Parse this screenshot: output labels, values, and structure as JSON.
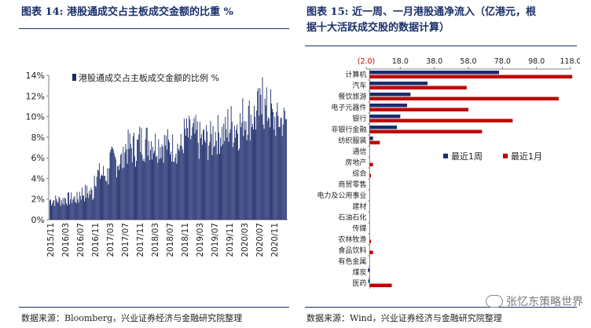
{
  "left": {
    "title": "图表 14:  港股通成交占主板成交金额的比重  %",
    "source": "数据来源：Bloomberg，兴业证券经济与金融研究院整理"
  },
  "right": {
    "title_line1": "图表 15:  近一周、一月港股通净流入（亿港元，根",
    "title_line2": "据十大活跃成交股的数据计算）",
    "source": "数据来源：Wind，兴业证券经济与金融研究院整理"
  },
  "watermark": "张忆东策略世界",
  "colors": {
    "navy": "#1b2a6b",
    "red": "#c00000",
    "title": "#1a2f6b"
  },
  "chart_data": [
    {
      "type": "bar",
      "legend": "港股通成交占主板成交金额的比例 %",
      "legend_position": "top-left",
      "x_ticks": [
        "2015/11",
        "2016/03",
        "2016/07",
        "2016/11",
        "2017/03",
        "2017/07",
        "2017/11",
        "2018/03",
        "2018/07",
        "2018/11",
        "2019/03",
        "2019/07",
        "2019/11",
        "2020/03",
        "2020/07",
        "2020/11"
      ],
      "y_ticks": [
        "0%",
        "2%",
        "4%",
        "6%",
        "8%",
        "10%",
        "12%",
        "14%"
      ],
      "ylim": [
        0,
        14
      ],
      "grid": false,
      "segments": [
        {
          "from": "2015/11",
          "to": "2016/03",
          "low": 1.2,
          "high": 2.5
        },
        {
          "from": "2016/03",
          "to": "2016/07",
          "low": 1.3,
          "high": 2.7
        },
        {
          "from": "2016/07",
          "to": "2016/11",
          "low": 1.6,
          "high": 3.5
        },
        {
          "from": "2016/11",
          "to": "2017/03",
          "low": 3.0,
          "high": 5.6
        },
        {
          "from": "2017/03",
          "to": "2017/07",
          "low": 4.0,
          "high": 7.2
        },
        {
          "from": "2017/07",
          "to": "2017/11",
          "low": 5.0,
          "high": 8.8
        },
        {
          "from": "2017/11",
          "to": "2018/03",
          "low": 5.5,
          "high": 9.5
        },
        {
          "from": "2018/03",
          "to": "2018/07",
          "low": 5.5,
          "high": 9.0
        },
        {
          "from": "2018/07",
          "to": "2018/11",
          "low": 5.3,
          "high": 8.6
        },
        {
          "from": "2018/11",
          "to": "2019/03",
          "low": 5.8,
          "high": 10.2
        },
        {
          "from": "2019/03",
          "to": "2019/07",
          "low": 5.5,
          "high": 9.6
        },
        {
          "from": "2019/07",
          "to": "2019/11",
          "low": 6.2,
          "high": 10.3
        },
        {
          "from": "2019/11",
          "to": "2020/03",
          "low": 6.5,
          "high": 11.5
        },
        {
          "from": "2020/03",
          "to": "2020/07",
          "low": 7.5,
          "high": 12.2
        },
        {
          "from": "2020/07",
          "to": "2020/11",
          "low": 8.0,
          "high": 13.0
        },
        {
          "from": "2020/11",
          "to": "2021/01",
          "low": 7.5,
          "high": 11.5
        }
      ],
      "peak": 13.8
    },
    {
      "type": "bar",
      "orientation": "horizontal",
      "x_ticks": [
        "(2.0)",
        "18.0",
        "38.0",
        "58.0",
        "78.0",
        "98.0",
        "118.0"
      ],
      "xlim": [
        -2,
        118
      ],
      "legend_position": "center-right",
      "categories": [
        "计算机",
        "汽车",
        "餐饮旅游",
        "电子元器件",
        "银行",
        "非银行金融",
        "纺织服装",
        "通信",
        "房地产",
        "综合",
        "商贸零售",
        "电力及公用事业",
        "建材",
        "石油石化",
        "传媒",
        "农林牧渔",
        "食品饮料",
        "有色金属",
        "煤炭",
        "医药"
      ],
      "series": [
        {
          "name": "最近1周",
          "color": "#1b2a6b",
          "values": [
            76,
            34,
            24,
            22,
            18,
            16,
            2,
            0,
            0,
            0,
            0,
            0,
            0,
            0,
            0,
            0,
            0,
            0,
            -1.0,
            -0.8
          ]
        },
        {
          "name": "最近1月",
          "color": "#c00000",
          "values": [
            119,
            57,
            111,
            58,
            84,
            66,
            6,
            0,
            2,
            0.8,
            0,
            0,
            0,
            0,
            0,
            0.8,
            2,
            0,
            0,
            13
          ]
        }
      ]
    }
  ]
}
